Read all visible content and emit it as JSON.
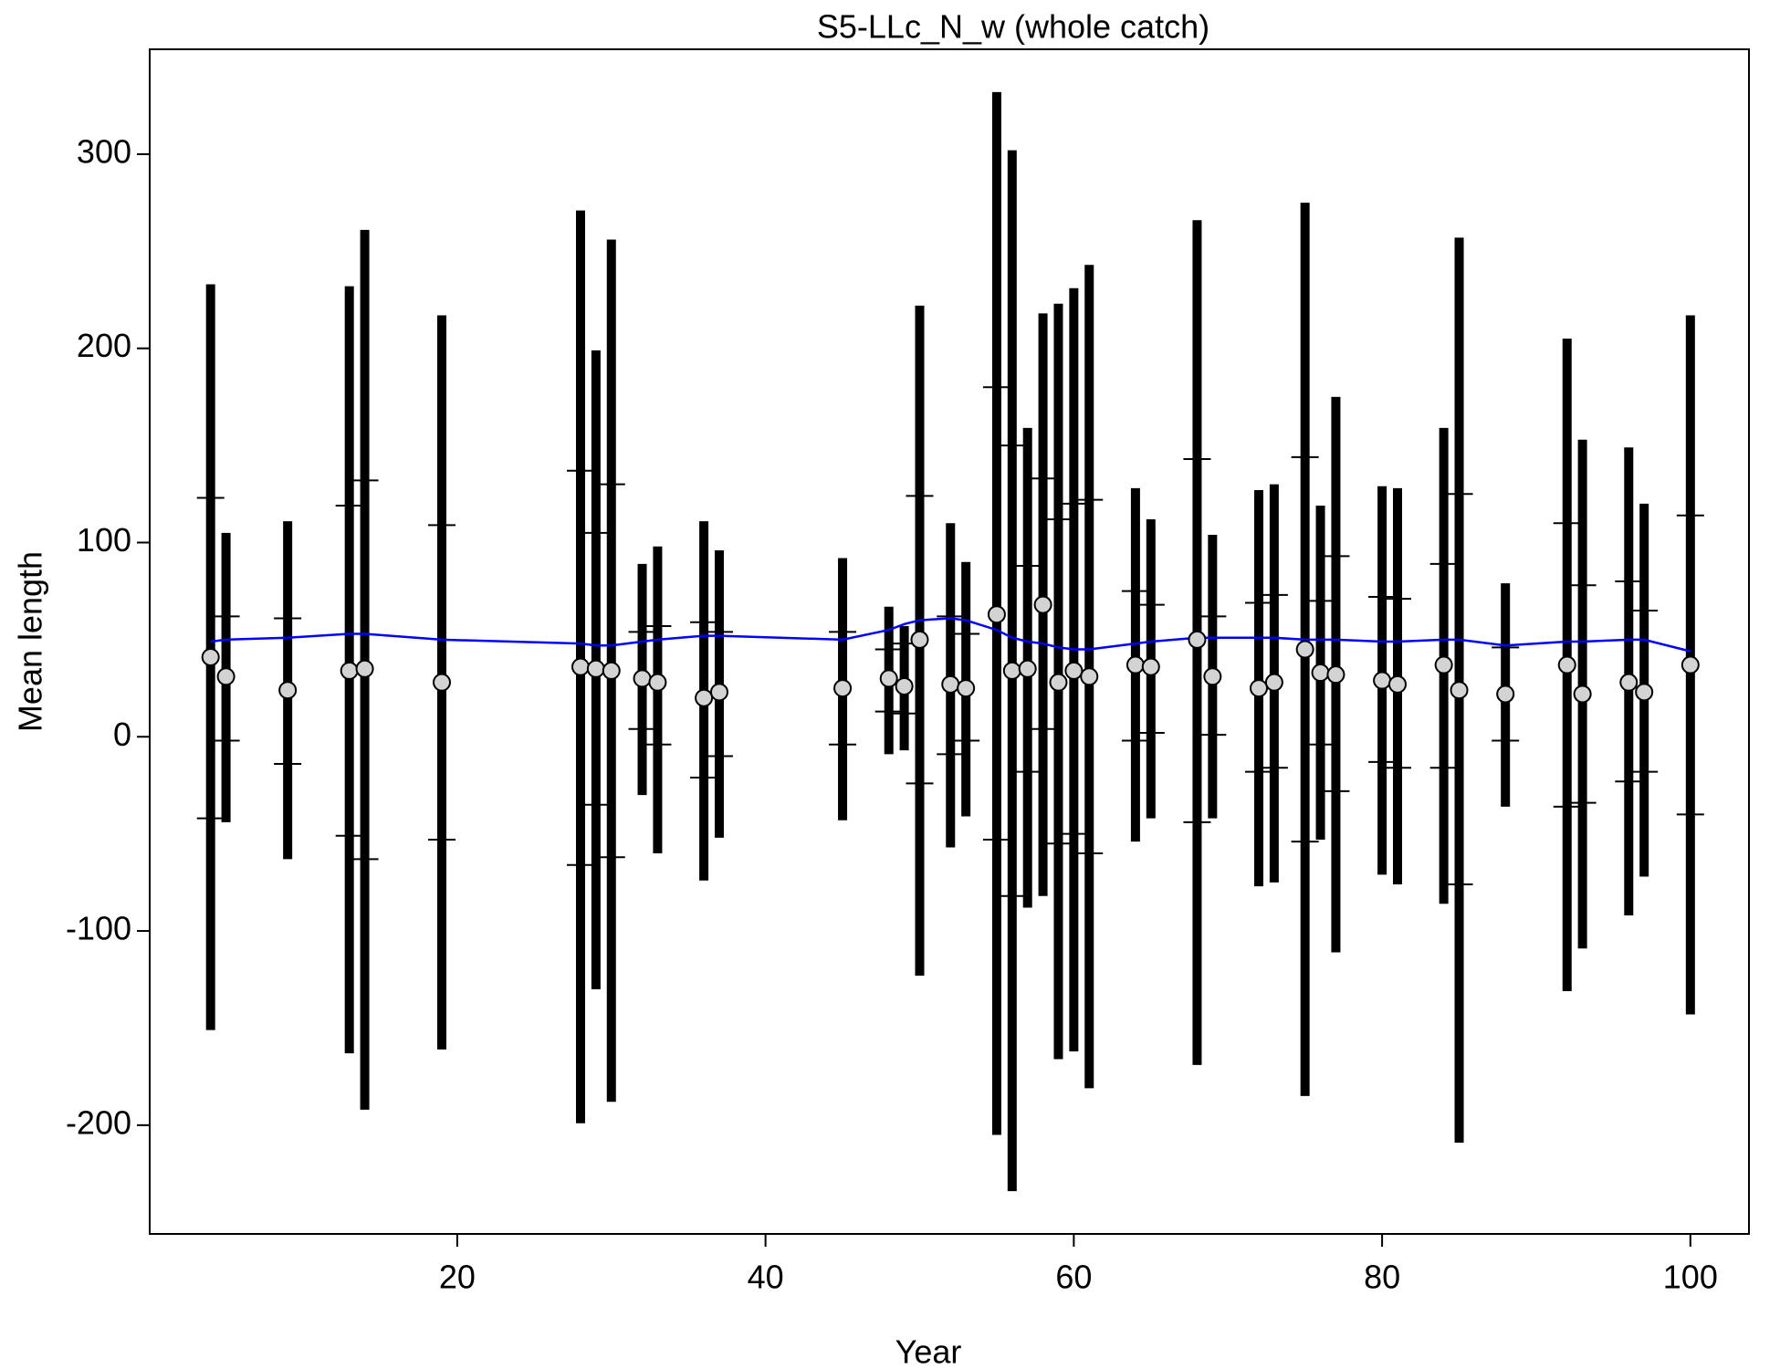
{
  "chart_data": {
    "type": "errorbar",
    "title": "S5-LLc_N_w (whole catch)",
    "xlabel": "Year",
    "ylabel": "Mean length",
    "x": [
      4,
      5,
      9,
      13,
      14,
      19,
      28,
      29,
      30,
      32,
      33,
      36,
      37,
      45,
      48,
      49,
      50,
      52,
      53,
      55,
      56,
      57,
      58,
      59,
      60,
      61,
      64,
      65,
      68,
      69,
      72,
      73,
      75,
      76,
      77,
      80,
      81,
      84,
      85,
      88,
      92,
      93,
      96,
      97,
      100
    ],
    "values": [
      41,
      31,
      24,
      34,
      35,
      28,
      36,
      35,
      34,
      30,
      28,
      20,
      23,
      25,
      30,
      26,
      50,
      27,
      25,
      63,
      34,
      35,
      68,
      28,
      34,
      31,
      37,
      36,
      50,
      31,
      25,
      28,
      45,
      33,
      32,
      29,
      27,
      37,
      24,
      22,
      37,
      22,
      28,
      23,
      37
    ],
    "lower": [
      -151,
      -44,
      -63,
      -163,
      -192,
      -161,
      -199,
      -130,
      -188,
      -30,
      -60,
      -74,
      -52,
      -43,
      -9,
      -7,
      -123,
      -57,
      -41,
      -205,
      -234,
      -88,
      -82,
      -166,
      -162,
      -181,
      -54,
      -42,
      -169,
      -42,
      -77,
      -75,
      -185,
      -53,
      -111,
      -71,
      -76,
      -86,
      -209,
      -36,
      -131,
      -109,
      -92,
      -72,
      -143
    ],
    "upper": [
      233,
      105,
      111,
      232,
      261,
      217,
      271,
      199,
      256,
      89,
      98,
      111,
      96,
      92,
      67,
      57,
      222,
      110,
      90,
      332,
      302,
      159,
      218,
      223,
      231,
      243,
      128,
      112,
      266,
      104,
      127,
      130,
      275,
      119,
      175,
      129,
      128,
      159,
      257,
      79,
      205,
      153,
      149,
      120,
      217
    ],
    "inner_lower": [
      -42,
      -2,
      -14,
      -51,
      -63,
      -53,
      -66,
      -35,
      -62,
      4,
      -4,
      -21,
      -10,
      -4,
      13,
      12,
      -24,
      -9,
      -2,
      -53,
      -82,
      -18,
      4,
      -55,
      -50,
      -60,
      -2,
      2,
      -44,
      1,
      -18,
      -16,
      -54,
      -4,
      -28,
      -13,
      -16,
      -16,
      -76,
      -2,
      -36,
      -34,
      -23,
      -18,
      -40
    ],
    "inner_upper": [
      123,
      62,
      61,
      119,
      132,
      109,
      137,
      105,
      130,
      54,
      57,
      59,
      54,
      54,
      45,
      48,
      124,
      62,
      53,
      180,
      150,
      88,
      133,
      112,
      120,
      122,
      75,
      68,
      143,
      62,
      69,
      73,
      144,
      70,
      93,
      72,
      71,
      89,
      125,
      46,
      110,
      78,
      80,
      65,
      114
    ],
    "expected": [
      49,
      50,
      51,
      53,
      53,
      50,
      48,
      47,
      47,
      49,
      50,
      52,
      52,
      50,
      55,
      58,
      60,
      61,
      60,
      55,
      51,
      49,
      48,
      46,
      45,
      45,
      48,
      49,
      51,
      51,
      51,
      51,
      50,
      50,
      50,
      49,
      49,
      50,
      50,
      47,
      49,
      49,
      50,
      50,
      44
    ],
    "bar_color": "#000000",
    "point_color": "#d3d3d3",
    "line_color": "#0000ff",
    "xlim": [
      0.05,
      103.8
    ],
    "ylim": [
      -256,
      354
    ],
    "xticks": [
      20,
      40,
      60,
      80,
      100
    ],
    "yticks": [
      -200,
      -100,
      0,
      100,
      200,
      300
    ]
  }
}
